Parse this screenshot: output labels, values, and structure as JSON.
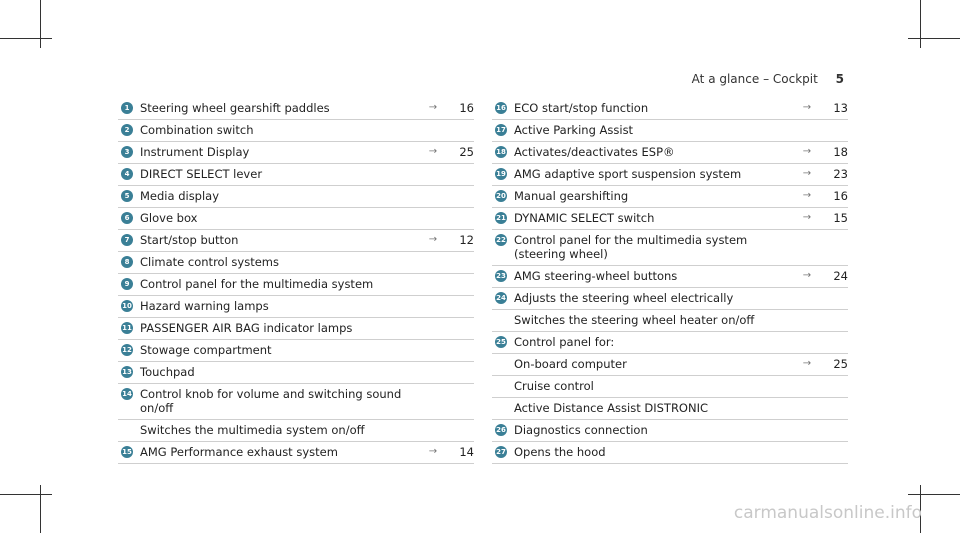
{
  "header": {
    "section": "At a glance – Cockpit",
    "page_number": "5"
  },
  "left_items": [
    {
      "num": "1",
      "label": "Steering wheel gearshift paddles",
      "arrow": "→",
      "page": "16"
    },
    {
      "num": "2",
      "label": "Combination switch",
      "arrow": "",
      "page": ""
    },
    {
      "num": "3",
      "label": "Instrument Display",
      "arrow": "→",
      "page": "25"
    },
    {
      "num": "4",
      "label": "DIRECT SELECT lever",
      "arrow": "",
      "page": ""
    },
    {
      "num": "5",
      "label": "Media display",
      "arrow": "",
      "page": ""
    },
    {
      "num": "6",
      "label": "Glove box",
      "arrow": "",
      "page": ""
    },
    {
      "num": "7",
      "label": "Start/stop button",
      "arrow": "→",
      "page": "12"
    },
    {
      "num": "8",
      "label": "Climate control systems",
      "arrow": "",
      "page": ""
    },
    {
      "num": "9",
      "label": "Control panel for the multimedia system",
      "arrow": "",
      "page": ""
    },
    {
      "num": "10",
      "label": "Hazard warning lamps",
      "arrow": "",
      "page": ""
    },
    {
      "num": "11",
      "label": "PASSENGER AIR BAG indicator lamps",
      "arrow": "",
      "page": ""
    },
    {
      "num": "12",
      "label": "Stowage compartment",
      "arrow": "",
      "page": ""
    },
    {
      "num": "13",
      "label": "Touchpad",
      "arrow": "",
      "page": ""
    },
    {
      "num": "14",
      "label": "Control knob for volume and switching sound\non/off",
      "arrow": "",
      "page": ""
    },
    {
      "num": "",
      "label": "Switches the multimedia system on/off",
      "arrow": "",
      "page": ""
    },
    {
      "num": "15",
      "label": "AMG Performance exhaust system",
      "arrow": "→",
      "page": "14"
    }
  ],
  "right_items": [
    {
      "num": "16",
      "label": "ECO start/stop function",
      "arrow": "→",
      "page": "13"
    },
    {
      "num": "17",
      "label": "Active Parking Assist",
      "arrow": "",
      "page": ""
    },
    {
      "num": "18",
      "label": "Activates/deactivates ESP®",
      "arrow": "→",
      "page": "18"
    },
    {
      "num": "19",
      "label": "AMG adaptive sport suspension system",
      "arrow": "→",
      "page": "23"
    },
    {
      "num": "20",
      "label": "Manual gearshifting",
      "arrow": "→",
      "page": "16"
    },
    {
      "num": "21",
      "label": "DYNAMIC SELECT switch",
      "arrow": "→",
      "page": "15"
    },
    {
      "num": "22",
      "label": "Control panel for the multimedia system\n(steering wheel)",
      "arrow": "",
      "page": ""
    },
    {
      "num": "23",
      "label": "AMG steering-wheel buttons",
      "arrow": "→",
      "page": "24"
    },
    {
      "num": "24",
      "label": "Adjusts the steering wheel electrically",
      "arrow": "",
      "page": ""
    },
    {
      "num": "",
      "label": "Switches the steering wheel heater on/off",
      "arrow": "",
      "page": ""
    },
    {
      "num": "25",
      "label": "Control panel for:",
      "arrow": "",
      "page": ""
    },
    {
      "num": "",
      "label": "On-board computer",
      "arrow": "→",
      "page": "25"
    },
    {
      "num": "",
      "label": "Cruise control",
      "arrow": "",
      "page": ""
    },
    {
      "num": "",
      "label": "Active Distance Assist DISTRONIC",
      "arrow": "",
      "page": ""
    },
    {
      "num": "26",
      "label": "Diagnostics connection",
      "arrow": "",
      "page": ""
    },
    {
      "num": "27",
      "label": "Opens the hood",
      "arrow": "",
      "page": ""
    }
  ],
  "footer": {
    "watermark": "carmanualsonline.info"
  }
}
